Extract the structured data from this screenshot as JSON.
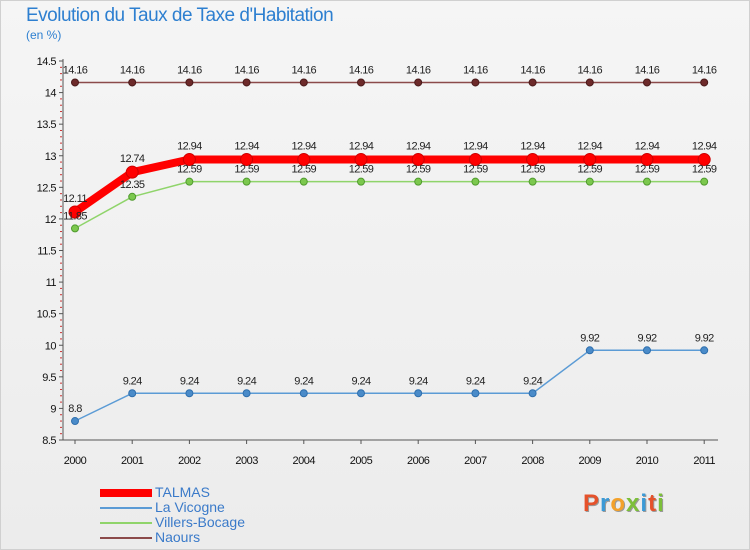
{
  "header": {
    "title": "Evolution du Taux de Taxe d'Habitation",
    "unit": "(en %)"
  },
  "logo": {
    "letters": [
      "P",
      "r",
      "o",
      "x",
      "i",
      "t",
      "i"
    ],
    "colors": [
      "#e5522b",
      "#3c9ad6",
      "#f3a12a",
      "#7cbf3a",
      "#3c9ad6",
      "#e5522b",
      "#7cbf3a"
    ]
  },
  "chart_data": {
    "type": "line",
    "x": [
      "2000",
      "2001",
      "2002",
      "2003",
      "2004",
      "2005",
      "2006",
      "2007",
      "2008",
      "2009",
      "2010",
      "2011"
    ],
    "ylim": [
      8.5,
      14.5
    ],
    "yticks": [
      "8.5",
      "9",
      "9.5",
      "10",
      "10.5",
      "11",
      "11.5",
      "12",
      "12.5",
      "13",
      "13.5",
      "14",
      "14.5"
    ],
    "grid": false,
    "legend_position": "bottom-left",
    "series": [
      {
        "name": "TALMAS",
        "color": "#ff0000",
        "values": [
          12.11,
          12.74,
          12.94,
          12.94,
          12.94,
          12.94,
          12.94,
          12.94,
          12.94,
          12.94,
          12.94,
          12.94
        ],
        "labels": [
          "12.11",
          "12.74",
          "12.94",
          "12.94",
          "12.94",
          "12.94",
          "12.94",
          "12.94",
          "12.94",
          "12.94",
          "12.94",
          "12.94"
        ]
      },
      {
        "name": "La Vicogne",
        "color": "#5b9bd5",
        "values": [
          8.8,
          9.24,
          9.24,
          9.24,
          9.24,
          9.24,
          9.24,
          9.24,
          9.24,
          9.92,
          9.92,
          9.92
        ],
        "labels": [
          "8.8",
          "9.24",
          "9.24",
          "9.24",
          "9.24",
          "9.24",
          "9.24",
          "9.24",
          "9.24",
          "9.92",
          "9.92",
          "9.92"
        ]
      },
      {
        "name": "Villers-Bocage",
        "color": "#8fd46a",
        "values": [
          11.85,
          12.35,
          12.59,
          12.59,
          12.59,
          12.59,
          12.59,
          12.59,
          12.59,
          12.59,
          12.59,
          12.59
        ],
        "labels": [
          "11.85",
          "12.35",
          "12.59",
          "12.59",
          "12.59",
          "12.59",
          "12.59",
          "12.59",
          "12.59",
          "12.59",
          "12.59",
          "12.59"
        ]
      },
      {
        "name": "Naours",
        "color": "#8b4a4a",
        "values": [
          14.16,
          14.16,
          14.16,
          14.16,
          14.16,
          14.16,
          14.16,
          14.16,
          14.16,
          14.16,
          14.16,
          14.16
        ],
        "labels": [
          "14.16",
          "14.16",
          "14.16",
          "14.16",
          "14.16",
          "14.16",
          "14.16",
          "14.16",
          "14.16",
          "14.16",
          "14.16",
          "14.16"
        ]
      }
    ]
  }
}
